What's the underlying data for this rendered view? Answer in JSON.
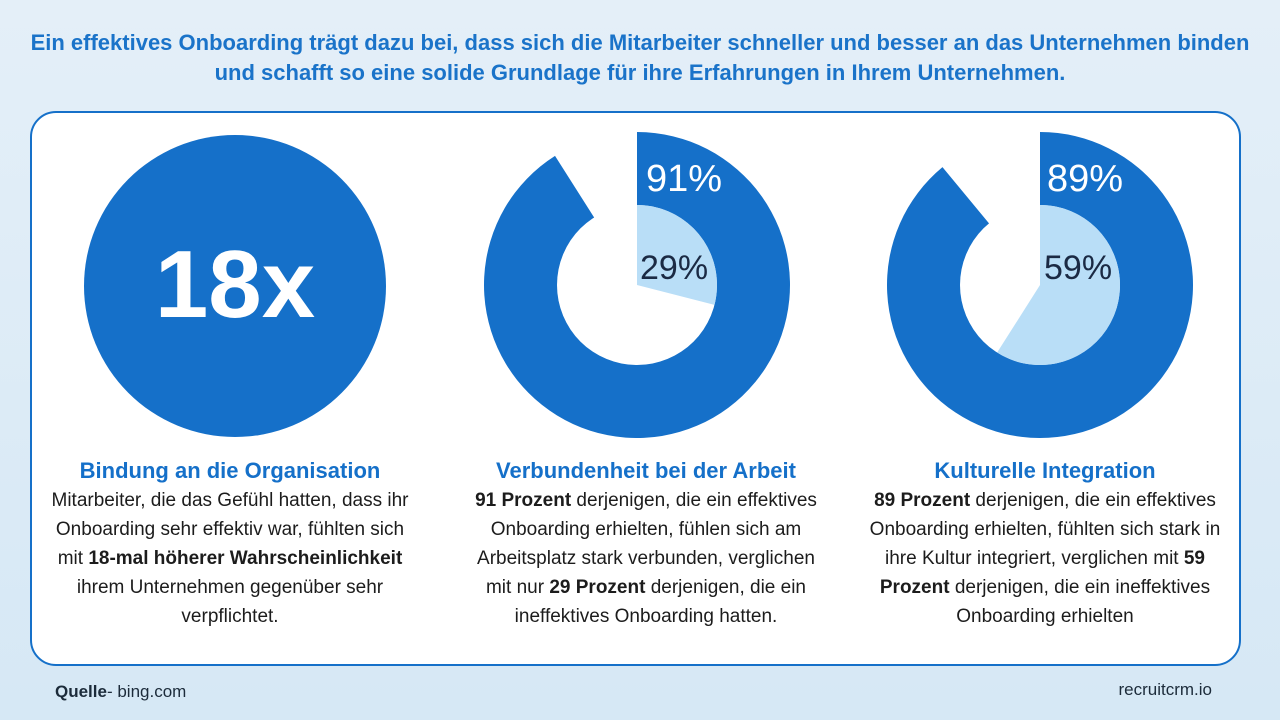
{
  "headline": "Ein effektives Onboarding trägt dazu bei, dass sich die Mitarbeiter schneller und besser an das Unternehmen binden und schafft so eine solide Grundlage für ihre Erfahrungen in Ihrem Unternehmen.",
  "colors": {
    "primary": "#1570c9",
    "light": "#b9def7",
    "title": "#1a73c9"
  },
  "stat": {
    "value": "18x"
  },
  "columns": [
    {
      "title": "Bindung an die Organisation",
      "text": [
        {
          "t": "Mitarbeiter, die das Gefühl hatten, dass ihr Onboarding sehr effektiv war, fühlten sich mit "
        },
        {
          "b": "18-mal höherer Wahrscheinlichkeit"
        },
        {
          "t": " ihrem Unternehmen gegenüber sehr verpflichtet."
        }
      ]
    },
    {
      "title": "Verbundenheit bei der Arbeit",
      "text": [
        {
          "b": "91 Prozent"
        },
        {
          "t": " derjenigen, die ein effektives Onboarding erhielten, fühlen sich am Arbeitsplatz stark verbunden, verglichen mit nur "
        },
        {
          "b": "29 Prozent"
        },
        {
          "t": " derjenigen, die ein ineffektives Onboarding hatten."
        }
      ]
    },
    {
      "title": "Kulturelle Integration",
      "text": [
        {
          "b": "89 Prozent"
        },
        {
          "t": " derjenigen, die ein effektives Onboarding erhielten, fühlten sich stark in ihre Kultur integriert, verglichen mit "
        },
        {
          "b": "59 Prozent"
        },
        {
          "t": " derjenigen, die ein ineffektives Onboarding erhielten"
        }
      ]
    }
  ],
  "chart_data": [
    {
      "type": "pie",
      "title": "Verbundenheit bei der Arbeit",
      "series": [
        {
          "values": [
            91
          ],
          "label": "91%"
        },
        {
          "values": [
            29
          ],
          "label": "29%"
        }
      ]
    },
    {
      "type": "pie",
      "title": "Kulturelle Integration",
      "series": [
        {
          "values": [
            89
          ],
          "label": "89%"
        },
        {
          "values": [
            59
          ],
          "label": "59%"
        }
      ]
    }
  ],
  "footer": {
    "source_label": "Quelle",
    "source_value": "- bing.com",
    "brand": "recruitcrm.io"
  }
}
